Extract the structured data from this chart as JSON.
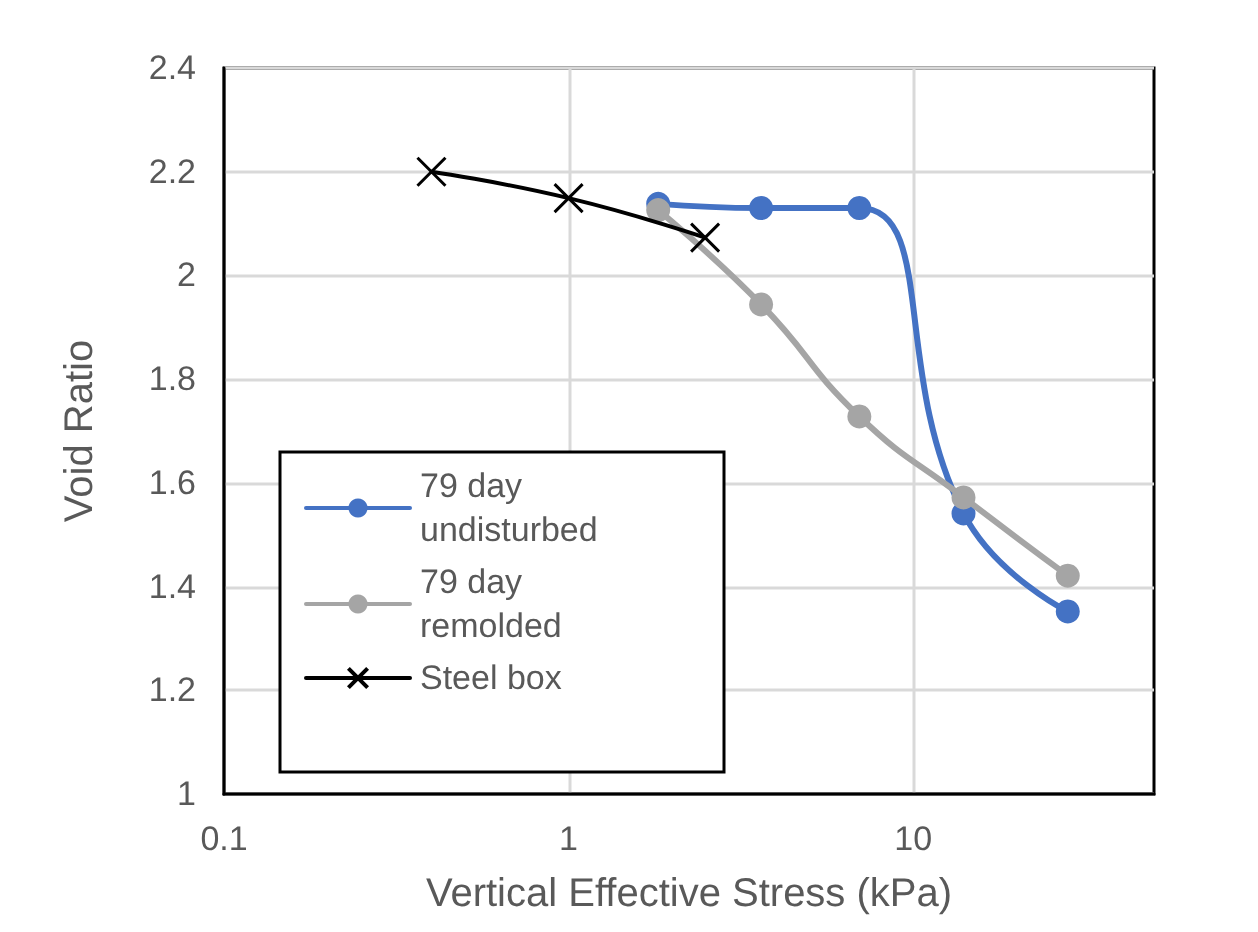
{
  "chart_data": {
    "type": "line",
    "xlabel": "Vertical Effective Stress (kPa)",
    "ylabel": "Void Ratio",
    "log": "x",
    "xlim": [
      0.1,
      50
    ],
    "xticks": [
      0.1,
      1,
      10
    ],
    "ylim": [
      1,
      2.4
    ],
    "yticks": [
      1,
      1.2,
      1.4,
      1.6,
      1.8,
      2,
      2.2,
      2.4
    ],
    "grid": true,
    "legend": "bottom left",
    "line_style": "solid",
    "series": [
      {
        "name": "79 day undisturbed",
        "color": "#4472c4",
        "marker": "circle",
        "x": [
          1.82,
          3.62,
          6.98,
          14.0,
          28.1
        ],
        "values": [
          2.138,
          2.13,
          2.13,
          1.541,
          1.352
        ]
      },
      {
        "name": "79 day remolded",
        "color": "#a5a5a5",
        "marker": "circle",
        "x": [
          1.82,
          3.62,
          6.98,
          14.0,
          28.1
        ],
        "values": [
          2.126,
          1.944,
          1.728,
          1.572,
          1.421
        ]
      },
      {
        "name": "Steel box",
        "color": "#000000",
        "marker": "cross",
        "x": [
          0.4,
          1.0,
          2.49
        ],
        "values": [
          2.2,
          2.149,
          2.073
        ]
      }
    ]
  }
}
